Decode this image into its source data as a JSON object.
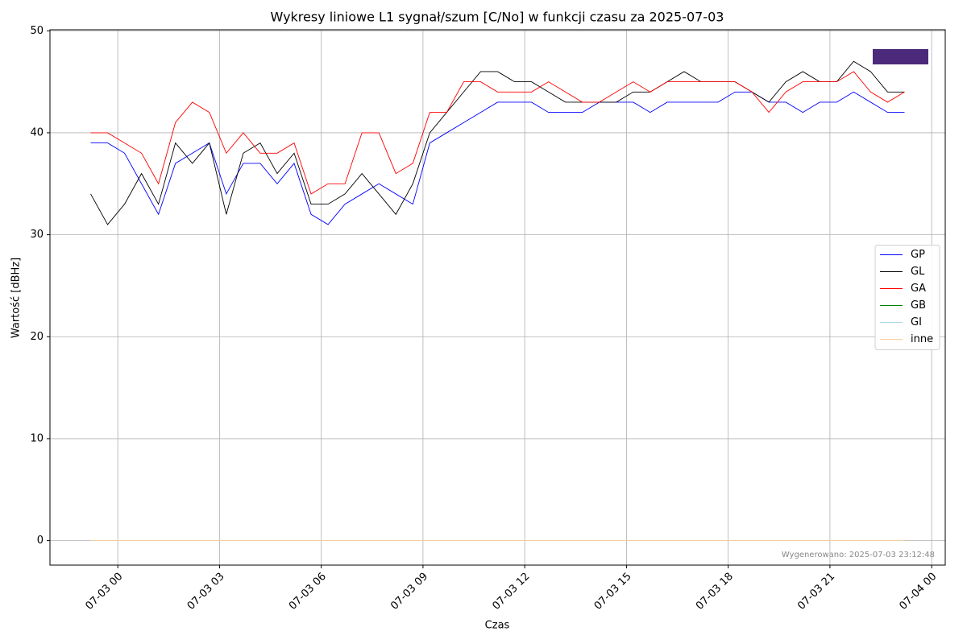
{
  "chart_data": {
    "type": "line",
    "title": "Wykresy liniowe L1 sygnał/szum [C/No] w funkcji czasu za 2025-07-03",
    "xlabel": "Czas",
    "ylabel": "Wartość [dBHz]",
    "footnote": "Wygenerowano: 2025-07-03 23:12:48",
    "x": [
      -0.8,
      -0.3,
      0.2,
      0.7,
      1.2,
      1.7,
      2.2,
      2.7,
      3.2,
      3.7,
      4.2,
      4.7,
      5.2,
      5.7,
      6.2,
      6.7,
      7.2,
      7.7,
      8.2,
      8.7,
      9.2,
      9.7,
      10.2,
      10.7,
      11.2,
      11.7,
      12.2,
      12.7,
      13.2,
      13.7,
      14.2,
      14.7,
      15.2,
      15.7,
      16.2,
      16.7,
      17.2,
      17.7,
      18.2,
      18.7,
      19.2,
      19.7,
      20.2,
      20.7,
      21.2,
      21.7,
      22.2,
      22.7,
      23.2
    ],
    "xlim": [
      -2,
      24.4
    ],
    "xticks": [
      {
        "value": 0,
        "label": "07-03 00"
      },
      {
        "value": 3,
        "label": "07-03 03"
      },
      {
        "value": 6,
        "label": "07-03 06"
      },
      {
        "value": 9,
        "label": "07-03 09"
      },
      {
        "value": 12,
        "label": "07-03 12"
      },
      {
        "value": 15,
        "label": "07-03 15"
      },
      {
        "value": 18,
        "label": "07-03 18"
      },
      {
        "value": 21,
        "label": "07-03 21"
      },
      {
        "value": 24,
        "label": "07-04 00"
      }
    ],
    "ylim": [
      -2.4,
      50.1
    ],
    "yticks": [
      0,
      10,
      20,
      30,
      40,
      50
    ],
    "grid": true,
    "legend": "center right",
    "series": [
      {
        "name": "GP",
        "color": "#0000ff",
        "values": [
          39,
          39,
          38,
          35,
          32,
          37,
          38,
          39,
          34,
          37,
          37,
          35,
          37,
          32,
          31,
          33,
          34,
          35,
          34,
          33,
          39,
          40,
          41,
          42,
          43,
          43,
          43,
          42,
          42,
          42,
          43,
          43,
          43,
          42,
          43,
          43,
          43,
          43,
          44,
          44,
          43,
          43,
          42,
          43,
          43,
          44,
          43,
          42,
          42
        ]
      },
      {
        "name": "GL",
        "color": "#000000",
        "values": [
          34,
          31,
          33,
          36,
          33,
          39,
          37,
          39,
          32,
          38,
          39,
          36,
          38,
          33,
          33,
          34,
          36,
          34,
          32,
          35,
          40,
          42,
          44,
          46,
          46,
          45,
          45,
          44,
          43,
          43,
          43,
          43,
          44,
          44,
          45,
          46,
          45,
          45,
          45,
          44,
          43,
          45,
          46,
          45,
          45,
          47,
          46,
          44,
          44
        ]
      },
      {
        "name": "GA",
        "color": "#ff0000",
        "values": [
          40,
          40,
          39,
          38,
          35,
          41,
          43,
          42,
          38,
          40,
          38,
          38,
          39,
          34,
          35,
          35,
          40,
          40,
          36,
          37,
          42,
          42,
          45,
          45,
          44,
          44,
          44,
          45,
          44,
          43,
          43,
          44,
          45,
          44,
          45,
          45,
          45,
          45,
          45,
          44,
          42,
          44,
          45,
          45,
          45,
          46,
          44,
          43,
          44
        ]
      },
      {
        "name": "GB",
        "color": "#008000",
        "values": [
          0,
          0,
          0,
          0,
          0,
          0,
          0,
          0,
          0,
          0,
          0,
          0,
          0,
          0,
          0,
          0,
          0,
          0,
          0,
          0,
          0,
          0,
          0,
          0,
          0,
          0,
          0,
          0,
          0,
          0,
          0,
          0,
          0,
          0,
          0,
          0,
          0,
          0,
          0,
          0,
          0,
          0,
          0,
          0,
          0,
          0,
          0,
          0,
          0
        ]
      },
      {
        "name": "GI",
        "color": "#add8e6",
        "values": [
          0,
          0,
          0,
          0,
          0,
          0,
          0,
          0,
          0,
          0,
          0,
          0,
          0,
          0,
          0,
          0,
          0,
          0,
          0,
          0,
          0,
          0,
          0,
          0,
          0,
          0,
          0,
          0,
          0,
          0,
          0,
          0,
          0,
          0,
          0,
          0,
          0,
          0,
          0,
          0,
          0,
          0,
          0,
          0,
          0,
          0,
          0,
          0,
          0
        ]
      },
      {
        "name": "inne",
        "color": "#ffcc99",
        "values": [
          0,
          0,
          0,
          0,
          0,
          0,
          0,
          0,
          0,
          0,
          0,
          0,
          0,
          0,
          0,
          0,
          0,
          0,
          0,
          0,
          0,
          0,
          0,
          0,
          0,
          0,
          0,
          0,
          0,
          0,
          0,
          0,
          0,
          0,
          0,
          0,
          0,
          0,
          0,
          0,
          0,
          0,
          0,
          0,
          0,
          0,
          0,
          0,
          0
        ]
      }
    ]
  }
}
